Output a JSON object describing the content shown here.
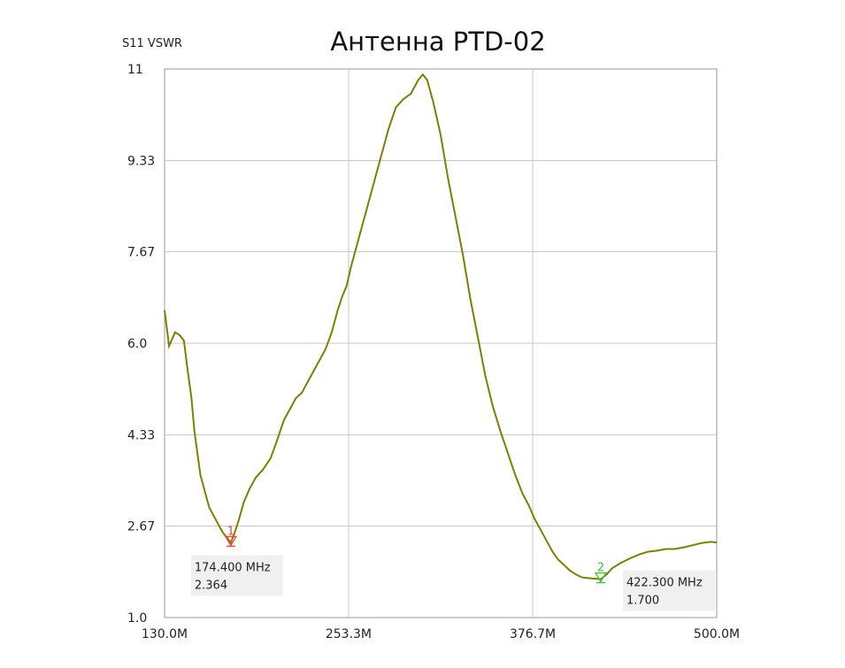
{
  "chart_data": {
    "type": "line",
    "title": "Антенна PTD-02",
    "ylabel": "S11 VSWR",
    "xlabel": "",
    "xlim": [
      130.0,
      500.0
    ],
    "ylim": [
      1.0,
      11.0
    ],
    "x_ticks": [
      {
        "value": 130.0,
        "label": "130.0M"
      },
      {
        "value": 253.3,
        "label": "253.3M"
      },
      {
        "value": 376.7,
        "label": "376.7M"
      },
      {
        "value": 500.0,
        "label": "500.0M"
      }
    ],
    "y_ticks": [
      {
        "value": 1.0,
        "label": "1.0"
      },
      {
        "value": 2.67,
        "label": "2.67"
      },
      {
        "value": 4.33,
        "label": "4.33"
      },
      {
        "value": 6.0,
        "label": "6.0"
      },
      {
        "value": 7.67,
        "label": "7.67"
      },
      {
        "value": 9.33,
        "label": "9.33"
      },
      {
        "value": 11.0,
        "label": "11"
      }
    ],
    "grid": true,
    "line_color": "#7f7f00",
    "series": [
      {
        "name": "",
        "x": [
          130,
          133,
          137,
          140,
          143,
          145,
          148,
          150,
          152,
          154,
          157,
          160,
          163,
          166,
          169,
          172,
          174.4,
          177,
          180,
          183,
          187,
          191,
          196,
          201,
          205,
          210,
          214,
          218,
          222,
          226,
          230,
          234,
          238,
          242,
          246,
          249,
          252,
          255,
          260,
          265,
          270,
          275,
          280,
          285,
          290,
          295,
          300,
          303,
          306,
          310,
          315,
          320,
          325,
          330,
          335,
          340,
          345,
          350,
          355,
          360,
          365,
          370,
          374,
          378,
          382,
          386,
          390,
          394,
          398,
          402,
          406,
          410,
          414,
          418,
          422.3,
          426,
          430,
          436,
          442,
          448,
          454,
          460,
          466,
          472,
          478,
          484,
          490,
          496,
          500
        ],
        "y": [
          6.6,
          5.95,
          6.2,
          6.15,
          6.05,
          5.6,
          5.0,
          4.4,
          4.0,
          3.6,
          3.3,
          3.0,
          2.85,
          2.7,
          2.55,
          2.45,
          2.364,
          2.55,
          2.8,
          3.1,
          3.35,
          3.55,
          3.7,
          3.9,
          4.2,
          4.6,
          4.8,
          5.0,
          5.1,
          5.3,
          5.5,
          5.7,
          5.9,
          6.2,
          6.6,
          6.85,
          7.05,
          7.4,
          7.9,
          8.4,
          8.9,
          9.4,
          9.9,
          10.3,
          10.45,
          10.55,
          10.8,
          10.9,
          10.8,
          10.4,
          9.8,
          9.0,
          8.3,
          7.6,
          6.8,
          6.1,
          5.4,
          4.85,
          4.4,
          4.0,
          3.6,
          3.25,
          3.05,
          2.8,
          2.6,
          2.4,
          2.2,
          2.05,
          1.95,
          1.85,
          1.78,
          1.73,
          1.72,
          1.71,
          1.7,
          1.78,
          1.9,
          2.0,
          2.08,
          2.15,
          2.2,
          2.22,
          2.25,
          2.25,
          2.28,
          2.32,
          2.36,
          2.38,
          2.37
        ]
      }
    ],
    "markers": [
      {
        "number": "1",
        "x": 174.4,
        "y": 2.364,
        "color": "#ff3c3c",
        "freq_label": "174.400 MHz",
        "value_label": "2.364",
        "box_side": "below-left"
      },
      {
        "number": "2",
        "x": 422.3,
        "y": 1.7,
        "color": "#33cc33",
        "freq_label": "422.300 MHz",
        "value_label": "1.700",
        "box_side": "below-right"
      }
    ]
  }
}
